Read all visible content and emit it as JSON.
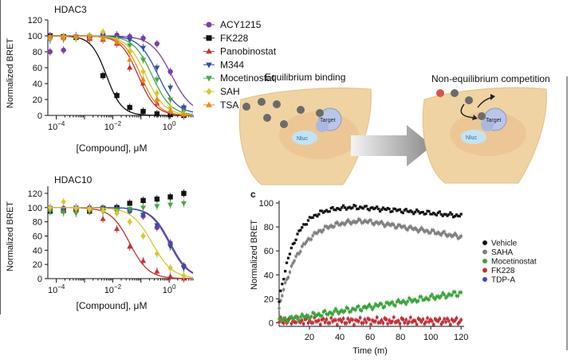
{
  "figure": {
    "panel_a_top_title": "HDAC3",
    "panel_a_bottom_title": "HDAC10",
    "panel_b_left_label": "Equilibrium binding",
    "panel_b_right_label": "Non-equilibrium competition",
    "target_label": "Target",
    "nluc_label": "Nluc",
    "panel_c_letter": "c"
  },
  "chart_data": [
    {
      "type": "scatter",
      "title": "HDAC3",
      "xlabel": "[Compound], μM",
      "ylabel": "Normalized BRET",
      "xscale": "log",
      "xlim": [
        5e-05,
        7
      ],
      "ylim": [
        0,
        120
      ],
      "yticks": [
        0,
        20,
        40,
        60,
        80,
        100,
        120
      ],
      "xticks": [
        {
          "value": 0.0001,
          "base": "10",
          "exp": "−4"
        },
        {
          "value": 0.01,
          "base": "10",
          "exp": "−2"
        },
        {
          "value": 1,
          "base": "10",
          "exp": "0"
        }
      ],
      "grid": false,
      "legend_position": "right",
      "series": [
        {
          "name": "ACY1215",
          "color": "#7b3fa5",
          "marker": "circle",
          "ic50": 1.2,
          "hill": 1.2,
          "top": 100,
          "bottom": 2,
          "x": [
            6e-05,
            0.00018,
            0.0005,
            0.0015,
            0.0045,
            0.014,
            0.04,
            0.12,
            0.37,
            1.1,
            3.3
          ],
          "y": [
            80,
            82,
            98,
            100,
            102,
            101,
            99,
            97,
            90,
            55,
            10
          ]
        },
        {
          "name": "FK228",
          "color": "#111111",
          "marker": "square",
          "ic50": 0.006,
          "hill": 1.6,
          "top": 100,
          "bottom": 0,
          "x": [
            6e-05,
            0.00018,
            0.0005,
            0.0015,
            0.0045,
            0.014,
            0.04,
            0.12,
            0.37,
            1.1,
            3.3
          ],
          "y": [
            100,
            99,
            98,
            97,
            50,
            25,
            10,
            5,
            2,
            1,
            0
          ]
        },
        {
          "name": "Panobinostat",
          "color": "#cc2f2f",
          "marker": "triangle-up",
          "ic50": 0.08,
          "hill": 1.4,
          "top": 100,
          "bottom": 0,
          "x": [
            6e-05,
            0.00018,
            0.0005,
            0.0015,
            0.0045,
            0.014,
            0.04,
            0.12,
            0.37,
            1.1,
            3.3
          ],
          "y": [
            99,
            98,
            100,
            96,
            95,
            90,
            60,
            40,
            15,
            5,
            1
          ]
        },
        {
          "name": "M344",
          "color": "#3050a8",
          "marker": "triangle-down",
          "ic50": 0.4,
          "hill": 1.3,
          "top": 100,
          "bottom": 2,
          "x": [
            6e-05,
            0.00018,
            0.0005,
            0.0015,
            0.0045,
            0.014,
            0.04,
            0.12,
            0.37,
            1.1,
            3.3
          ],
          "y": [
            95,
            96,
            99,
            98,
            100,
            97,
            95,
            85,
            60,
            35,
            10
          ]
        },
        {
          "name": "Mocetinostat",
          "color": "#45a845",
          "marker": "triangle-down",
          "ic50": 0.25,
          "hill": 1.3,
          "top": 100,
          "bottom": 0,
          "x": [
            6e-05,
            0.00018,
            0.0005,
            0.0015,
            0.0045,
            0.014,
            0.04,
            0.12,
            0.37,
            1.1,
            3.3
          ],
          "y": [
            96,
            98,
            97,
            99,
            97,
            95,
            88,
            70,
            45,
            20,
            5
          ]
        },
        {
          "name": "SAHA",
          "color": "#d8c832",
          "marker": "diamond",
          "ic50": 0.15,
          "hill": 1.3,
          "top": 100,
          "bottom": 0,
          "x": [
            6e-05,
            0.00018,
            0.0005,
            0.0015,
            0.0045,
            0.014,
            0.04,
            0.12,
            0.37,
            1.1,
            3.3
          ],
          "y": [
            97,
            99,
            98,
            100,
            105,
            95,
            80,
            55,
            28,
            10,
            2
          ]
        },
        {
          "name": "TSA",
          "color": "#e8891c",
          "marker": "triangle-up",
          "ic50": 0.1,
          "hill": 1.4,
          "top": 100,
          "bottom": 0,
          "x": [
            6e-05,
            0.00018,
            0.0005,
            0.0015,
            0.0045,
            0.014,
            0.04,
            0.12,
            0.37,
            1.1,
            3.3
          ],
          "y": [
            98,
            97,
            99,
            98,
            97,
            92,
            70,
            45,
            20,
            6,
            1
          ]
        }
      ]
    },
    {
      "type": "scatter",
      "title": "HDAC10",
      "xlabel": "[Compound], μM",
      "ylabel": "Normalized BRET",
      "xscale": "log",
      "xlim": [
        5e-05,
        7
      ],
      "ylim": [
        0,
        130
      ],
      "yticks": [
        0,
        20,
        40,
        60,
        80,
        100,
        120
      ],
      "xticks": [
        {
          "value": 0.0001,
          "base": "10",
          "exp": "−4"
        },
        {
          "value": 0.01,
          "base": "10",
          "exp": "−2"
        },
        {
          "value": 1,
          "base": "10",
          "exp": "0"
        }
      ],
      "grid": false,
      "series": [
        {
          "name": "ACY1215",
          "color": "#7b3fa5",
          "marker": "circle",
          "ic50": 1.0,
          "hill": 1.3,
          "top": 100,
          "bottom": 0,
          "x": [
            6e-05,
            0.00018,
            0.0005,
            0.0015,
            0.0045,
            0.014,
            0.04,
            0.12,
            0.37,
            1.1,
            3.3
          ],
          "y": [
            100,
            99,
            98,
            100,
            98,
            97,
            95,
            88,
            72,
            50,
            18
          ]
        },
        {
          "name": "FK228",
          "color": "#111111",
          "marker": "square",
          "flat": true,
          "x": [
            6e-05,
            0.00018,
            0.0005,
            0.0015,
            0.0045,
            0.014,
            0.04,
            0.12,
            0.37,
            1.1,
            3.3
          ],
          "y": [
            95,
            96,
            97,
            95,
            99,
            100,
            106,
            110,
            112,
            115,
            120
          ]
        },
        {
          "name": "Panobinostat",
          "color": "#cc2f2f",
          "marker": "triangle-up",
          "ic50": 0.04,
          "hill": 1.3,
          "top": 100,
          "bottom": 0,
          "x": [
            6e-05,
            0.00018,
            0.0005,
            0.0015,
            0.0045,
            0.014,
            0.04,
            0.12,
            0.37,
            1.1,
            3.3
          ],
          "y": [
            97,
            99,
            98,
            96,
            84,
            70,
            45,
            25,
            10,
            3,
            0
          ]
        },
        {
          "name": "M344",
          "color": "#3050a8",
          "marker": "triangle-down",
          "ic50": 1.1,
          "hill": 1.3,
          "top": 100,
          "bottom": 0,
          "x": [
            6e-05,
            0.00018,
            0.0005,
            0.0015,
            0.0045,
            0.014,
            0.04,
            0.12,
            0.37,
            1.1,
            3.3
          ],
          "y": [
            99,
            98,
            100,
            97,
            99,
            98,
            95,
            90,
            75,
            45,
            15
          ]
        },
        {
          "name": "Mocetinostat",
          "color": "#45a845",
          "marker": "triangle-down",
          "flat": true,
          "x": [
            6e-05,
            0.00018,
            0.0005,
            0.0015,
            0.0045,
            0.014,
            0.04,
            0.12,
            0.37,
            1.1,
            3.3
          ],
          "y": [
            95,
            93,
            92,
            95,
            94,
            96,
            98,
            100,
            102,
            104,
            106
          ]
        },
        {
          "name": "SAHA",
          "color": "#d8c832",
          "marker": "diamond",
          "ic50": 0.25,
          "hill": 1.2,
          "top": 100,
          "bottom": 0,
          "x": [
            6e-05,
            0.00018,
            0.0005,
            0.0015,
            0.0045,
            0.014,
            0.04,
            0.12,
            0.37,
            1.1,
            3.3
          ],
          "y": [
            100,
            108,
            99,
            98,
            96,
            92,
            80,
            60,
            35,
            15,
            4
          ]
        }
      ]
    },
    {
      "type": "scatter",
      "title": "",
      "xlabel": "Time (m)",
      "ylabel": "Normalized BRET",
      "xlim": [
        0,
        122
      ],
      "ylim": [
        -3,
        102
      ],
      "xticks": [
        20,
        40,
        60,
        80,
        100,
        120
      ],
      "yticks": [
        0,
        20,
        40,
        60,
        80,
        100
      ],
      "grid": false,
      "legend_position": "right",
      "series": [
        {
          "name": "Vehicle",
          "color": "#111111",
          "model": "vehicle",
          "x_range": [
            0,
            120
          ],
          "points": 120
        },
        {
          "name": "SAHA",
          "color": "#808080",
          "model": "saha",
          "x_range": [
            0,
            120
          ],
          "points": 120
        },
        {
          "name": "Mocetinostat",
          "color": "#3aa43a",
          "model": "moce",
          "x_range": [
            0,
            120
          ],
          "points": 120
        },
        {
          "name": "FK228",
          "color": "#cc2f2f",
          "model": "flat",
          "x_range": [
            0,
            120
          ],
          "points": 120
        },
        {
          "name": "TDP-A",
          "color": "#3a4fc0",
          "model": "flat",
          "x_range": [
            0,
            120
          ],
          "points": 120
        }
      ]
    }
  ]
}
